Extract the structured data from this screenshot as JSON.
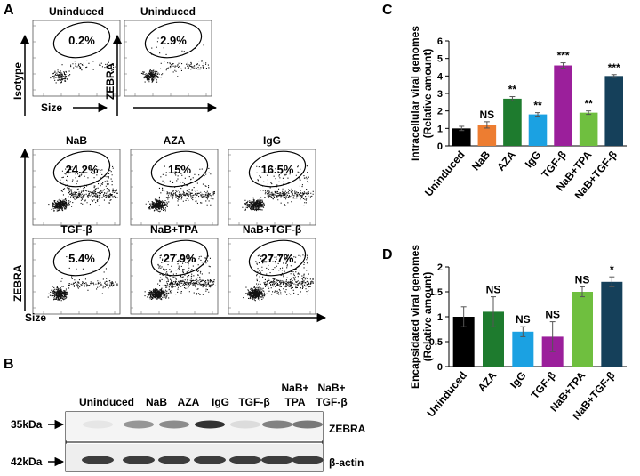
{
  "panel_labels": {
    "a": "A",
    "b": "B",
    "c": "C",
    "d": "D"
  },
  "flow": {
    "isotype_label": "Isotype",
    "zebra_label": "ZEBRA",
    "size_label": "Size",
    "plots": [
      {
        "condition": "Uninduced",
        "percent": "0.2%"
      },
      {
        "condition": "Uninduced",
        "percent": "2.9%"
      },
      {
        "condition": "NaB",
        "percent": "24.2%"
      },
      {
        "condition": "AZA",
        "percent": "15%"
      },
      {
        "condition": "IgG",
        "percent": "16.5%"
      },
      {
        "condition": "TGF-β",
        "percent": "5.4%"
      },
      {
        "condition": "NaB+TPA",
        "percent": "27.9%"
      },
      {
        "condition": "NaB+TGF-β",
        "percent": "27.7%"
      }
    ]
  },
  "blot": {
    "lanes": [
      "Uninduced",
      "NaB",
      "AZA",
      "IgG",
      "TGF-β",
      "NaB+\nTPA",
      "NaB+\nTGF-β"
    ],
    "lane_line1": [
      "Uninduced",
      "NaB",
      "AZA",
      "IgG",
      "TGF-β",
      "NaB+",
      "NaB+"
    ],
    "lane_line2": [
      "",
      "",
      "",
      "",
      "",
      "TPA",
      "TGF-β"
    ],
    "mw_top": "35kDa",
    "mw_bottom": "42kDa",
    "protein_top": "ZEBRA",
    "protein_bottom": "β-actin",
    "zebra_band_intensity": [
      0.05,
      0.45,
      0.5,
      0.95,
      0.1,
      0.55,
      0.6
    ],
    "actin_band_intensity": [
      0.9,
      0.9,
      0.9,
      0.9,
      0.9,
      0.9,
      0.9
    ]
  },
  "chart_data": [
    {
      "type": "bar",
      "panel": "C",
      "ylabel_line1": "Intracellular viral genomes",
      "ylabel_line2": "(Relative amount)",
      "ylim": [
        0,
        6
      ],
      "yticks": [
        0,
        1,
        2,
        3,
        4,
        5,
        6
      ],
      "ytick_labels": [
        "0",
        "1",
        "2",
        "3",
        "4",
        "5",
        "6"
      ],
      "categories": [
        "Uninduced",
        "NaB",
        "AZA",
        "IgG",
        "TGF-β",
        "NaB+TPA",
        "NaB+TGF-β"
      ],
      "values": [
        1.0,
        1.2,
        2.7,
        1.8,
        4.6,
        1.9,
        4.0
      ],
      "errors": [
        0.12,
        0.18,
        0.12,
        0.1,
        0.15,
        0.1,
        0.08
      ],
      "significance": [
        "",
        "NS",
        "**",
        "**",
        "***",
        "**",
        "***"
      ],
      "colors": [
        "#000000",
        "#ed7d31",
        "#1e7b2e",
        "#1ba1e2",
        "#9b1f9b",
        "#6fbf3f",
        "#15405a"
      ]
    },
    {
      "type": "bar",
      "panel": "D",
      "ylabel_line1": "Encapsidated viral genomes",
      "ylabel_line2": "(Relative amount)",
      "ylim": [
        0,
        2
      ],
      "yticks": [
        0,
        0.5,
        1,
        1.5,
        2
      ],
      "ytick_labels": [
        "0",
        "0.5",
        "1",
        "1.5",
        "2"
      ],
      "categories": [
        "Uninduced",
        "AZA",
        "IgG",
        "TGF-β",
        "NaB+TPA",
        "NaB+TGF-β"
      ],
      "values": [
        1.0,
        1.1,
        0.7,
        0.6,
        1.5,
        1.7
      ],
      "errors": [
        0.2,
        0.3,
        0.1,
        0.3,
        0.1,
        0.1
      ],
      "significance": [
        "",
        "NS",
        "NS",
        "NS",
        "NS",
        "*"
      ],
      "colors": [
        "#000000",
        "#1e7b2e",
        "#1ba1e2",
        "#9b1f9b",
        "#6fbf3f",
        "#15405a"
      ]
    }
  ]
}
